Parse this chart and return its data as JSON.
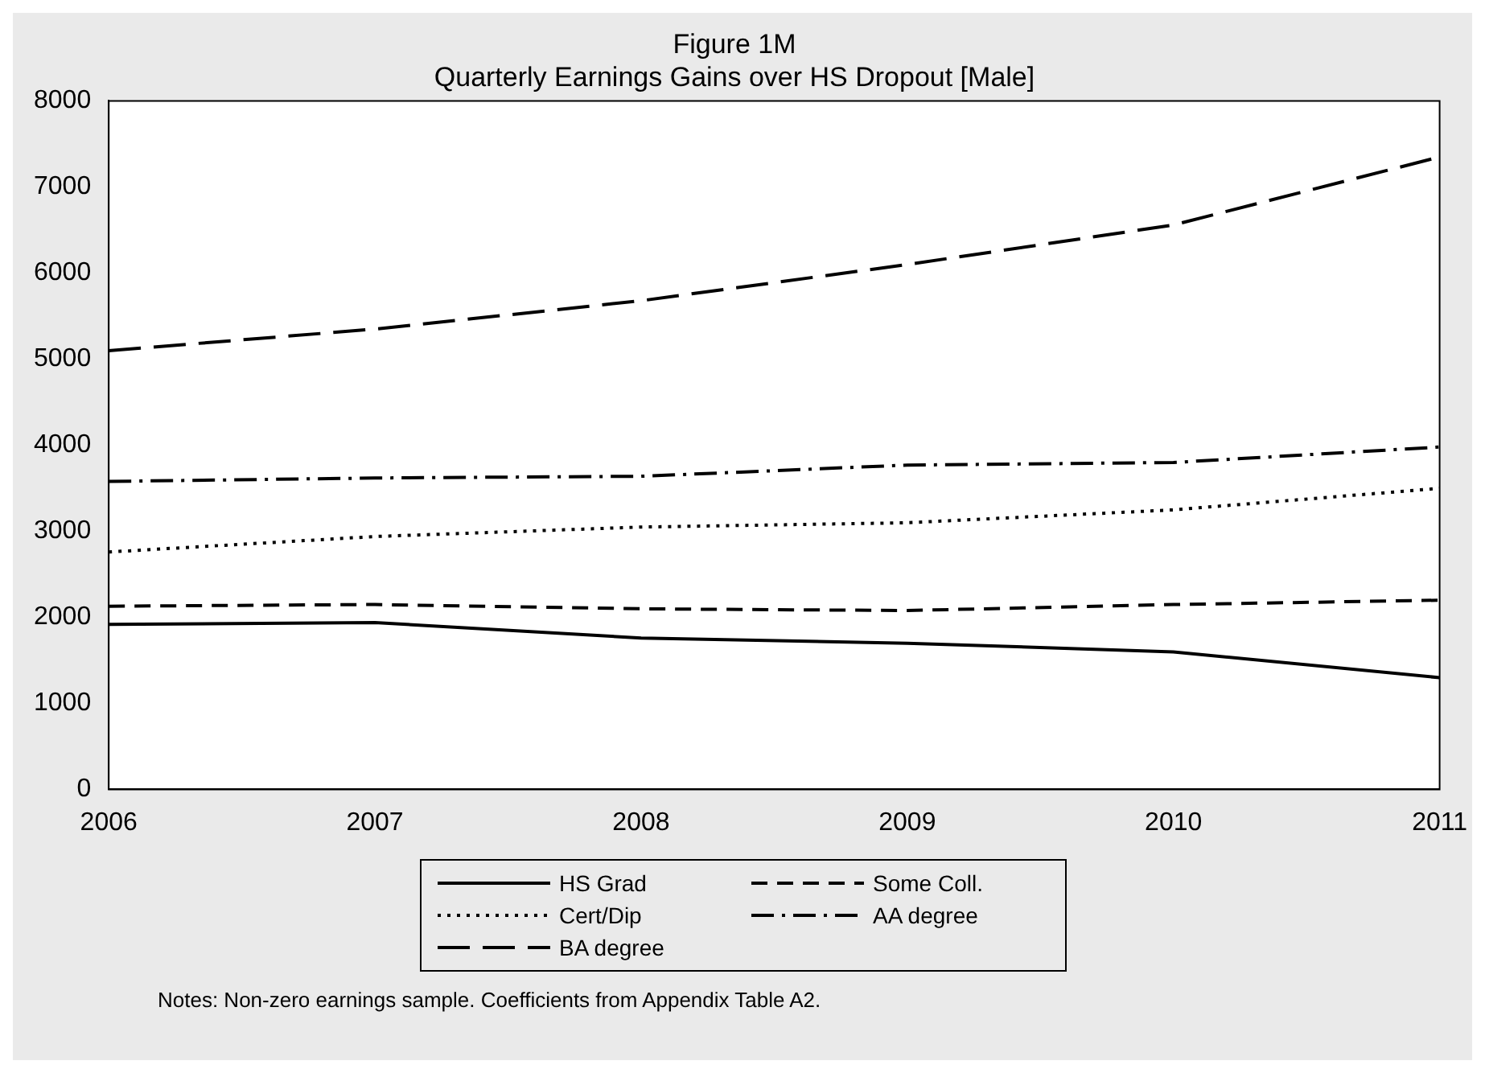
{
  "chart_data": {
    "type": "line",
    "title": "Figure 1M",
    "subtitle": "Quarterly Earnings Gains over HS Dropout [Male]",
    "x": [
      2006,
      2007,
      2008,
      2009,
      2010,
      2011
    ],
    "series": [
      {
        "name": "HS Grad",
        "color": "#000000",
        "line_style": "solid",
        "values": [
          1920,
          1940,
          1760,
          1700,
          1600,
          1300
        ]
      },
      {
        "name": "Some Coll.",
        "color": "#000000",
        "line_style": "dashed",
        "values": [
          2130,
          2150,
          2100,
          2080,
          2150,
          2200
        ]
      },
      {
        "name": "Cert/Dip",
        "color": "#000000",
        "line_style": "dotted",
        "values": [
          2760,
          2940,
          3050,
          3100,
          3250,
          3500
        ]
      },
      {
        "name": "AA degree",
        "color": "#000000",
        "line_style": "dashdot",
        "values": [
          3580,
          3620,
          3640,
          3770,
          3800,
          3980
        ]
      },
      {
        "name": "BA degree",
        "color": "#000000",
        "line_style": "longdash",
        "values": [
          5100,
          5350,
          5680,
          6100,
          6560,
          7350
        ]
      }
    ],
    "xlim": [
      2006,
      2011
    ],
    "xticks": [
      2006,
      2007,
      2008,
      2009,
      2010,
      2011
    ],
    "ylim": [
      0,
      8000
    ],
    "yticks": [
      0,
      1000,
      2000,
      3000,
      4000,
      5000,
      6000,
      7000,
      8000
    ],
    "grid": false,
    "legend": "bottom",
    "marker": "none",
    "annotations": [
      "Notes: Non-zero earnings sample. Coefficients from Appendix Table A2."
    ]
  }
}
